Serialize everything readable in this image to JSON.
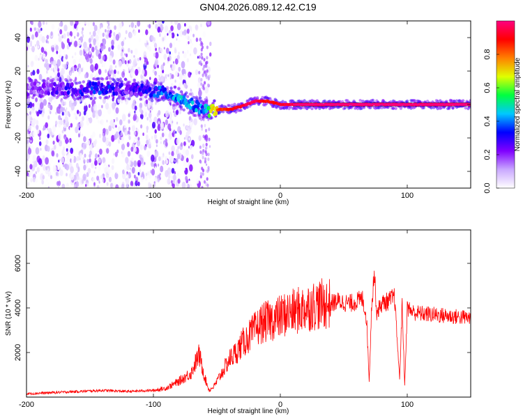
{
  "title": "GN04.2026.089.12.42.C19",
  "chart_data": [
    {
      "type": "heatmap",
      "xlabel": "Height of straight line (km)",
      "ylabel": "Frequency (Hz)",
      "xlim": [
        -200,
        150
      ],
      "ylim": [
        -50,
        50
      ],
      "xticks": [
        -200,
        -100,
        0,
        100
      ],
      "yticks": [
        -40,
        -20,
        0,
        20,
        40
      ],
      "colorbar": {
        "label": "Normalized spectral amplitude",
        "range": [
          0,
          1
        ],
        "ticks": [
          "0.0",
          "0.2",
          "0.4",
          "0.6",
          "0.8"
        ],
        "colormap": [
          "#ffffff",
          "#c9a8ff",
          "#8000ff",
          "#0000ff",
          "#00c8ff",
          "#00ff40",
          "#e0ff00",
          "#ff8000",
          "#ff0000",
          "#ff0080"
        ]
      },
      "ridge": {
        "x": [
          -200,
          -160,
          -140,
          -120,
          -100,
          -90,
          -80,
          -70,
          -60,
          -55,
          -50,
          -40,
          -30,
          -20,
          -10,
          0,
          10,
          50,
          100,
          150
        ],
        "y": [
          10,
          9,
          10,
          9,
          8,
          7,
          4,
          0,
          -3,
          -4,
          -3,
          -3,
          -1,
          2,
          2,
          0,
          0,
          0,
          0,
          0
        ],
        "amp": [
          0.2,
          0.35,
          0.4,
          0.3,
          0.4,
          0.45,
          0.5,
          0.5,
          0.45,
          0.7,
          0.85,
          0.9,
          0.95,
          1.0,
          0.9,
          0.95,
          0.98,
          1.0,
          1.0,
          1.0
        ]
      }
    },
    {
      "type": "line",
      "xlabel": "Height of straight line (km)",
      "ylabel": "SNR (10 * v/v)",
      "xlim": [
        -200,
        150
      ],
      "ylim": [
        0,
        7500
      ],
      "xticks": [
        -200,
        -100,
        0,
        100
      ],
      "yticks": [
        2000,
        4000,
        6000
      ],
      "color": "#ff0000",
      "series": [
        {
          "x": [
            -200,
            -180,
            -160,
            -140,
            -120,
            -110,
            -100,
            -90,
            -80,
            -70,
            -68,
            -64,
            -60,
            -58,
            -56,
            -52,
            -48,
            -44,
            -40,
            -35,
            -30,
            -25,
            -20,
            -15,
            -10,
            -5,
            0,
            5,
            10,
            15,
            20,
            25,
            30,
            40,
            45,
            50,
            55,
            60,
            65,
            68,
            70,
            72,
            74,
            76,
            80,
            85,
            90,
            94,
            96,
            98,
            100,
            105,
            110,
            120,
            130,
            140,
            150
          ],
          "y": [
            150,
            200,
            250,
            300,
            250,
            280,
            300,
            400,
            700,
            1100,
            1400,
            1900,
            1000,
            600,
            300,
            500,
            900,
            1300,
            1700,
            2000,
            2400,
            2700,
            3000,
            3300,
            3400,
            3500,
            3600,
            3750,
            3800,
            3900,
            4000,
            4100,
            4150,
            4200,
            4300,
            4250,
            4200,
            4300,
            4400,
            3500,
            700,
            4200,
            5600,
            3800,
            4200,
            4300,
            4500,
            800,
            4200,
            500,
            4000,
            3800,
            3750,
            3700,
            3650,
            3600,
            3550
          ]
        }
      ]
    }
  ]
}
